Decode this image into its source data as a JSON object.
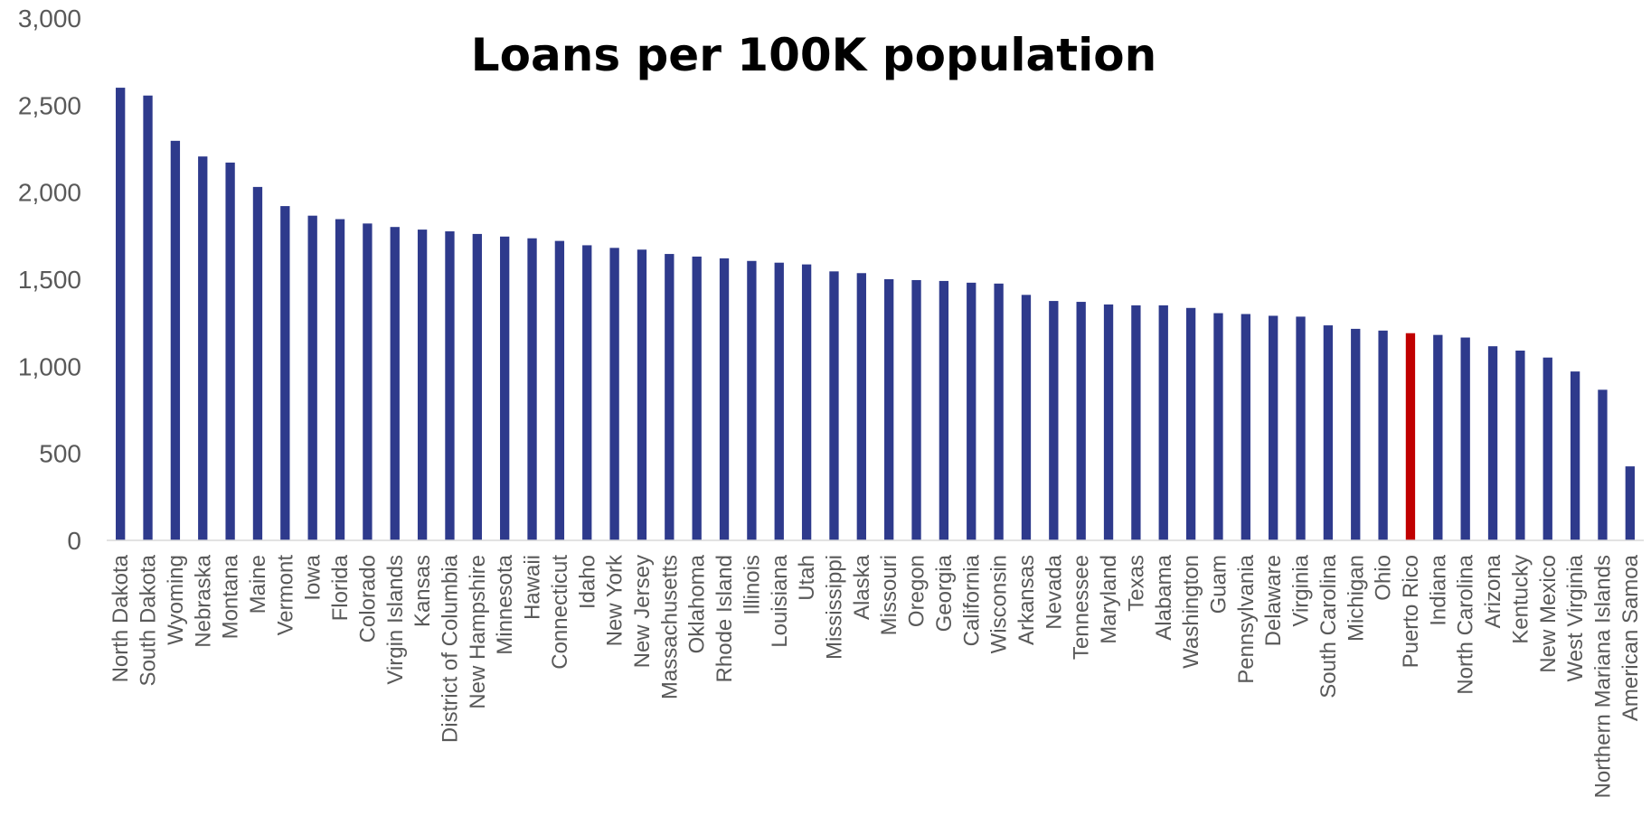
{
  "chart_data": {
    "type": "bar",
    "title": "Loans per 100K population",
    "xlabel": "",
    "ylabel": "",
    "ylim": [
      0,
      3000
    ],
    "yticks": [
      0,
      500,
      1000,
      1500,
      2000,
      2500,
      3000
    ],
    "ytick_labels": [
      "0",
      "500",
      "1,000",
      "1,500",
      "2,000",
      "2,500",
      "3,000"
    ],
    "grid": false,
    "legend": "none",
    "bar_color": "#2e3a8c",
    "highlight_color": "#c00000",
    "highlight_category": "Puerto Rico",
    "categories": [
      "North Dakota",
      "South Dakota",
      "Wyoming",
      "Nebraska",
      "Montana",
      "Maine",
      "Vermont",
      "Iowa",
      "Florida",
      "Colorado",
      "Virgin Islands",
      "Kansas",
      "District of Columbia",
      "New Hampshire",
      "Minnesota",
      "Hawaii",
      "Connecticut",
      "Idaho",
      "New York",
      "New Jersey",
      "Massachusetts",
      "Oklahoma",
      "Rhode Island",
      "Illinois",
      "Louisiana",
      "Utah",
      "Mississippi",
      "Alaska",
      "Missouri",
      "Oregon",
      "Georgia",
      "California",
      "Wisconsin",
      "Arkansas",
      "Nevada",
      "Tennessee",
      "Maryland",
      "Texas",
      "Alabama",
      "Washington",
      "Guam",
      "Pennsylvania",
      "Delaware",
      "Virginia",
      "South Carolina",
      "Michigan",
      "Ohio",
      "Puerto Rico",
      "Indiana",
      "North Carolina",
      "Arizona",
      "Kentucky",
      "New Mexico",
      "West Virginia",
      "Northern Mariana Islands",
      "American Samoa"
    ],
    "values": [
      2600,
      2555,
      2295,
      2205,
      2170,
      2030,
      1920,
      1865,
      1845,
      1820,
      1800,
      1785,
      1775,
      1760,
      1745,
      1735,
      1720,
      1695,
      1680,
      1670,
      1645,
      1630,
      1620,
      1605,
      1595,
      1585,
      1545,
      1535,
      1500,
      1495,
      1490,
      1480,
      1475,
      1410,
      1375,
      1370,
      1355,
      1350,
      1350,
      1335,
      1305,
      1300,
      1290,
      1285,
      1235,
      1215,
      1205,
      1190,
      1180,
      1165,
      1115,
      1090,
      1050,
      970,
      865,
      425
    ]
  }
}
